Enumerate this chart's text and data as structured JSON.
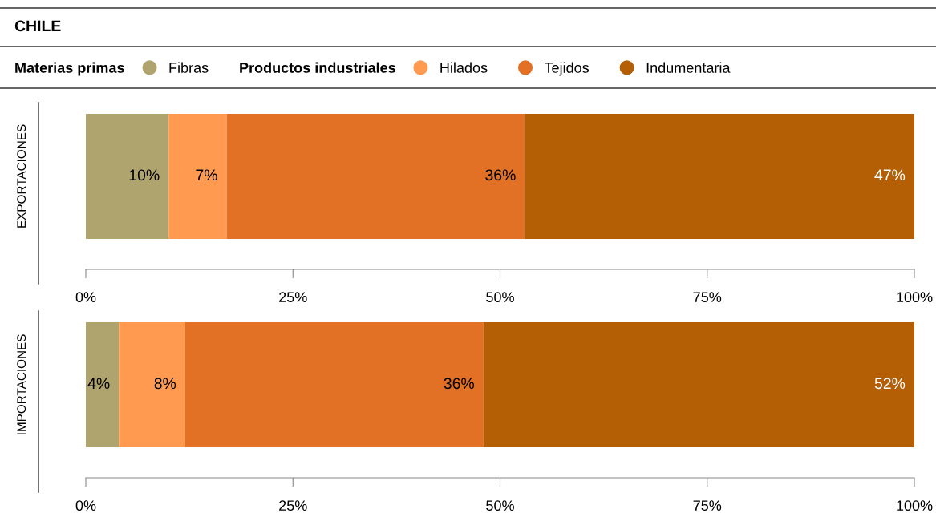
{
  "chart_data": [
    {
      "type": "bar",
      "orientation": "horizontal",
      "stacked": true,
      "title": "CHILE",
      "annotations": [
        "Materias primas",
        "Productos industriales"
      ],
      "legend": "top",
      "categories": [
        "EXPORTACIONES"
      ],
      "series": [
        {
          "name": "Fibras",
          "color": "#b0a46e",
          "values": [
            10
          ],
          "value_labels": [
            "10%"
          ]
        },
        {
          "name": "Hilados",
          "color": "#ff9a50",
          "values": [
            7
          ],
          "value_labels": [
            "7%"
          ]
        },
        {
          "name": "Tejidos",
          "color": "#e27025",
          "values": [
            36
          ],
          "value_labels": [
            "36%"
          ]
        },
        {
          "name": "Indumentaria",
          "color": "#b45e05",
          "values": [
            47
          ],
          "value_labels": [
            "47%"
          ]
        }
      ],
      "xlim": [
        0,
        100
      ],
      "xticks": [
        {
          "value": 0,
          "label": "0%"
        },
        {
          "value": 25,
          "label": "25%"
        },
        {
          "value": 50,
          "label": "50%"
        },
        {
          "value": 75,
          "label": "75%"
        },
        {
          "value": 100,
          "label": "100%"
        }
      ],
      "grid": false
    },
    {
      "type": "bar",
      "orientation": "horizontal",
      "stacked": true,
      "categories": [
        "IMPORTACIONES"
      ],
      "series": [
        {
          "color": "#b0a46e",
          "values": [
            4
          ],
          "value_labels": [
            "4%"
          ]
        },
        {
          "color": "#ff9a50",
          "values": [
            8
          ],
          "value_labels": [
            "8%"
          ]
        },
        {
          "color": "#e27025",
          "values": [
            36
          ],
          "value_labels": [
            "36%"
          ]
        },
        {
          "color": "#b45e05",
          "values": [
            52
          ],
          "value_labels": [
            "52%"
          ]
        }
      ],
      "xlim": [
        0,
        100
      ],
      "xticks": [
        {
          "value": 0,
          "label": "0%"
        },
        {
          "value": 25,
          "label": "25%"
        },
        {
          "value": 50,
          "label": "50%"
        },
        {
          "value": 75,
          "label": "75%"
        },
        {
          "value": 100,
          "label": "100%"
        }
      ],
      "grid": false
    }
  ]
}
